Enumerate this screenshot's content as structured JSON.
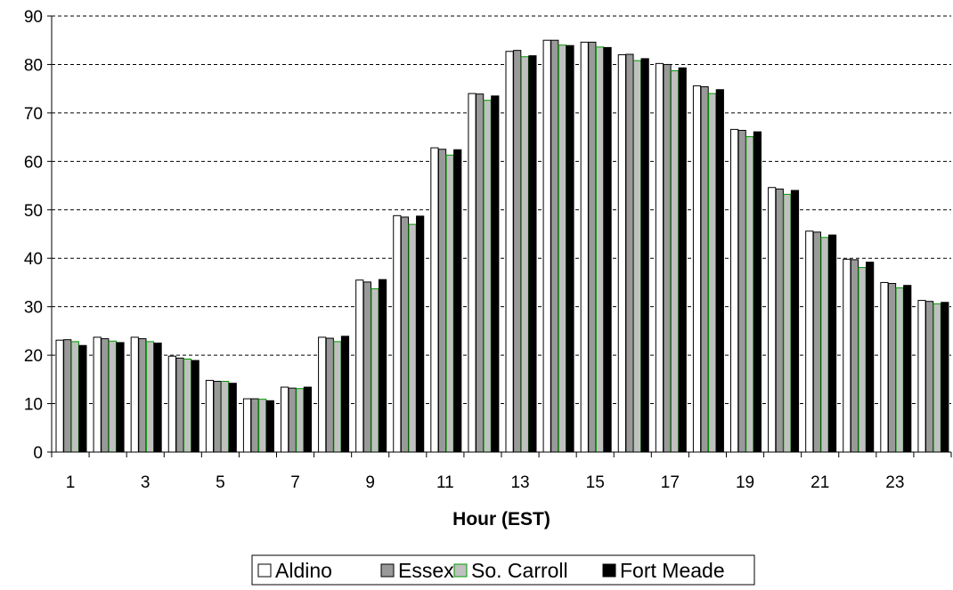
{
  "chart_data": {
    "type": "bar",
    "xlabel": "Hour (EST)",
    "ylabel": "",
    "ylim": [
      0,
      90
    ],
    "yticks": [
      "0",
      "10",
      "20",
      "30",
      "40",
      "50",
      "60",
      "70",
      "80",
      "90"
    ],
    "categories": [
      "1",
      "2",
      "3",
      "4",
      "5",
      "6",
      "7",
      "8",
      "9",
      "10",
      "11",
      "12",
      "13",
      "14",
      "15",
      "16",
      "17",
      "18",
      "19",
      "20",
      "21",
      "22",
      "23",
      "24"
    ],
    "xtick_labels": [
      "1",
      "",
      "3",
      "",
      "5",
      "",
      "7",
      "",
      "9",
      "",
      "11",
      "",
      "13",
      "",
      "15",
      "",
      "17",
      "",
      "19",
      "",
      "21",
      "",
      "23",
      ""
    ],
    "grid": "horizontal dashed",
    "legend_position": "bottom",
    "series": [
      {
        "name": "Aldino",
        "color": "#ffffff",
        "values": [
          23.1,
          23.7,
          23.7,
          19.8,
          14.8,
          11.0,
          13.4,
          23.7,
          35.5,
          48.8,
          62.8,
          74.0,
          82.7,
          85.0,
          84.6,
          82.0,
          80.2,
          75.6,
          66.6,
          54.6,
          45.6,
          39.8,
          35.0,
          31.3
        ]
      },
      {
        "name": "Essex",
        "color": "#999999",
        "values": [
          23.2,
          23.4,
          23.4,
          19.4,
          14.6,
          11.0,
          13.2,
          23.5,
          35.1,
          48.5,
          62.5,
          73.9,
          82.9,
          85.0,
          84.6,
          82.1,
          80.0,
          75.4,
          66.4,
          54.3,
          45.4,
          39.7,
          34.8,
          31.1
        ]
      },
      {
        "name": "So. Carroll",
        "color": "#c0c0c0",
        "values": [
          22.8,
          22.9,
          22.8,
          19.2,
          14.6,
          10.9,
          13.1,
          22.8,
          33.7,
          47.0,
          61.3,
          72.6,
          81.6,
          84.0,
          83.6,
          80.8,
          78.7,
          74.0,
          65.1,
          53.2,
          44.3,
          38.1,
          33.9,
          30.6
        ]
      },
      {
        "name": "Fort Meade",
        "color": "#000000",
        "values": [
          22.0,
          22.6,
          22.5,
          18.9,
          14.2,
          10.6,
          13.4,
          23.9,
          35.6,
          48.7,
          62.4,
          73.5,
          81.8,
          83.9,
          83.5,
          81.2,
          79.3,
          74.8,
          66.1,
          54.0,
          44.8,
          39.2,
          34.4,
          30.9
        ]
      }
    ]
  }
}
